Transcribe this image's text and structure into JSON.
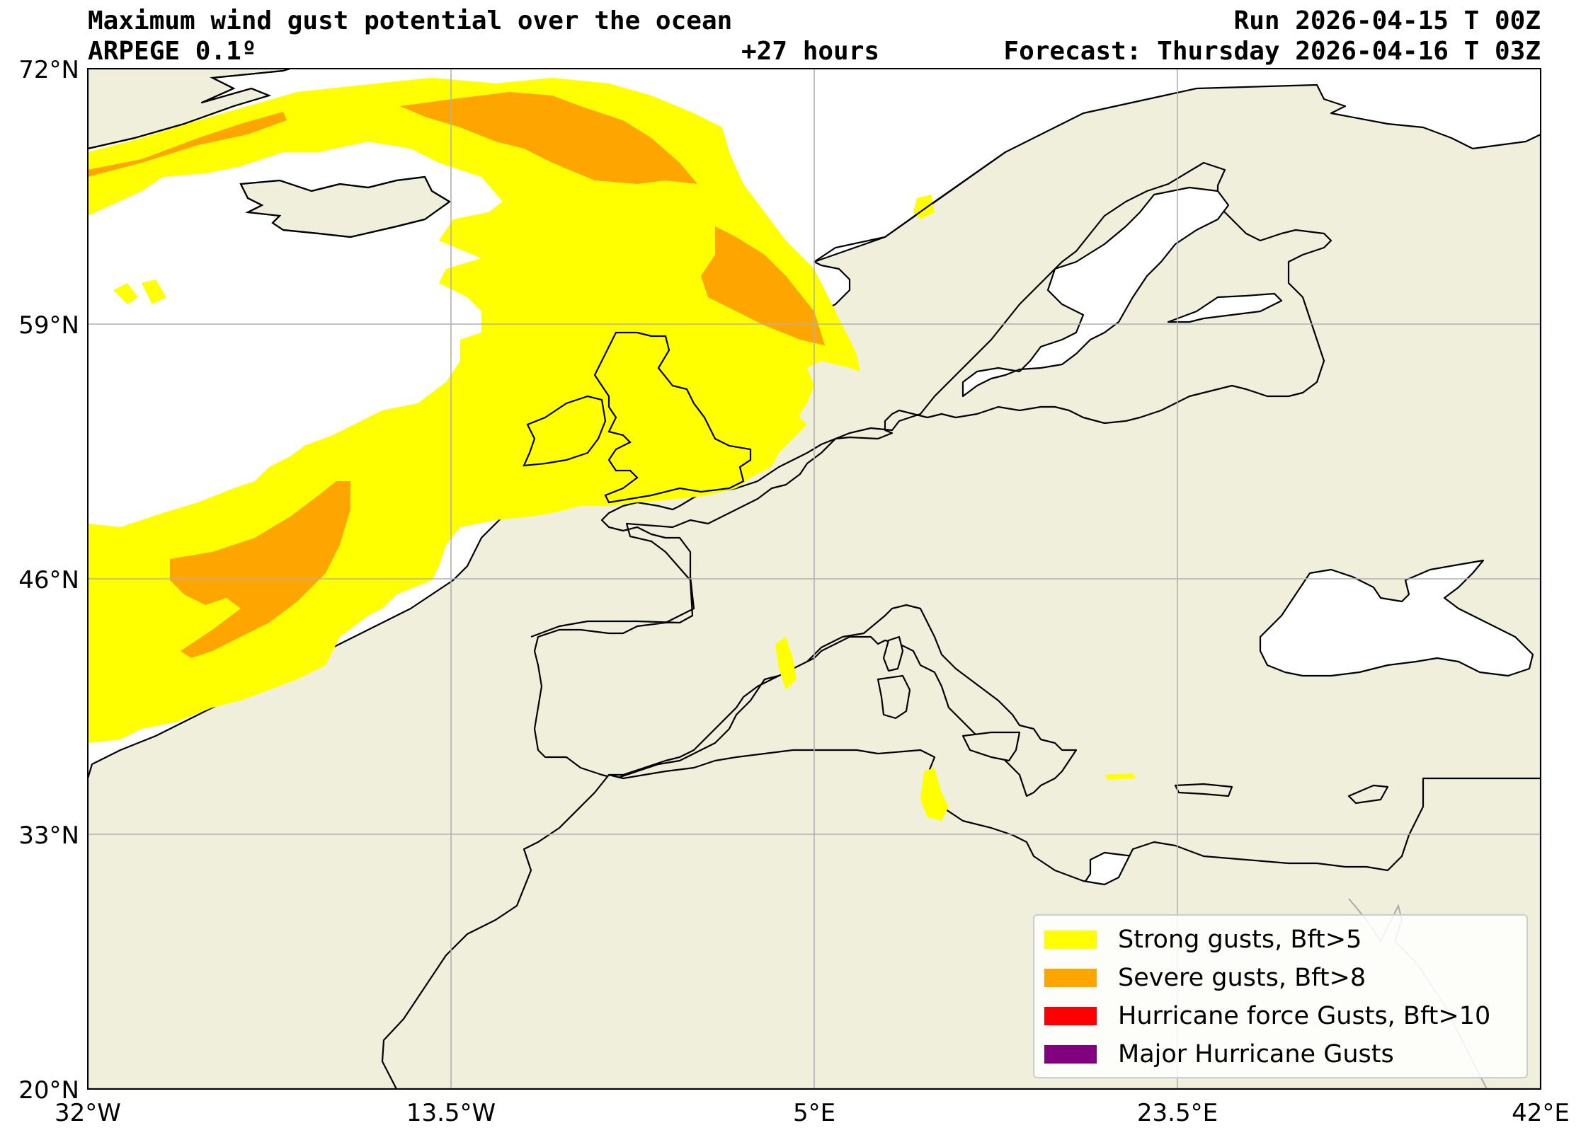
{
  "header": {
    "title": "Maximum wind gust potential over the ocean",
    "model": "ARPEGE 0.1º",
    "lead_time": "+27 hours",
    "run": "Run 2026-04-15 T 00Z",
    "forecast": "Forecast: Thursday 2026-04-16 T 03Z"
  },
  "map": {
    "projection": "equirectangular",
    "extent": {
      "lon": [
        -32,
        42
      ],
      "lat": [
        20,
        72
      ]
    },
    "land_color": "#efefdb",
    "ocean_color": "#ffffff",
    "coastline_color": "#000000",
    "grid": true,
    "lon_ticks": [
      "32°W",
      "13.5°W",
      "5°E",
      "23.5°E",
      "42°E"
    ],
    "lat_ticks": [
      "72°N",
      "59°N",
      "46°N",
      "33°N",
      "20°N"
    ]
  },
  "legend": {
    "placement": "lower-right",
    "items": [
      {
        "label": "Strong gusts, Bft>5",
        "color": "#ffff00"
      },
      {
        "label": "Severe gusts, Bft>8",
        "color": "#ffa500"
      },
      {
        "label": "Hurricane force Gusts, Bft>10",
        "color": "#ff0000"
      },
      {
        "label": "Major Hurricane Gusts",
        "color": "#800080"
      }
    ]
  }
}
